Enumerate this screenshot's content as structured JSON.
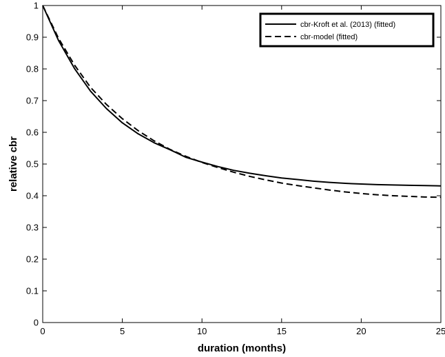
{
  "chart_data": {
    "type": "line",
    "xlabel": "duration (months)",
    "ylabel": "relative cbr",
    "xlim": [
      0,
      25
    ],
    "ylim": [
      0,
      1
    ],
    "xticks": [
      0,
      5,
      10,
      15,
      20,
      25
    ],
    "yticks": [
      0,
      0.1,
      0.2,
      0.3,
      0.4,
      0.5,
      0.6,
      0.7,
      0.8,
      0.9,
      1
    ],
    "grid": false,
    "legend_position": "top-right",
    "series": [
      {
        "name": "cbr-Kroft et al. (2013) (fitted)",
        "style": "solid",
        "color": "#000000",
        "x": [
          0,
          1,
          2,
          3,
          4,
          5,
          6,
          7,
          8,
          9,
          10,
          11,
          12,
          13,
          14,
          15,
          16,
          17,
          18,
          19,
          20,
          21,
          22,
          23,
          24,
          25
        ],
        "y": [
          1.0,
          0.889,
          0.801,
          0.73,
          0.675,
          0.63,
          0.595,
          0.567,
          0.545,
          0.521,
          0.506,
          0.492,
          0.48,
          0.471,
          0.463,
          0.456,
          0.451,
          0.446,
          0.442,
          0.439,
          0.437,
          0.435,
          0.434,
          0.433,
          0.432,
          0.431
        ]
      },
      {
        "name": "cbr-model (fitted)",
        "style": "dashed",
        "color": "#000000",
        "x": [
          0,
          1,
          2,
          3,
          4,
          5,
          6,
          7,
          8,
          9,
          10,
          11,
          12,
          13,
          14,
          15,
          16,
          17,
          18,
          19,
          20,
          21,
          22,
          23,
          24,
          25
        ],
        "y": [
          1.0,
          0.896,
          0.812,
          0.742,
          0.688,
          0.643,
          0.605,
          0.573,
          0.546,
          0.524,
          0.505,
          0.489,
          0.474,
          0.461,
          0.45,
          0.44,
          0.432,
          0.425,
          0.418,
          0.412,
          0.407,
          0.403,
          0.4,
          0.398,
          0.396,
          0.395
        ]
      }
    ]
  }
}
